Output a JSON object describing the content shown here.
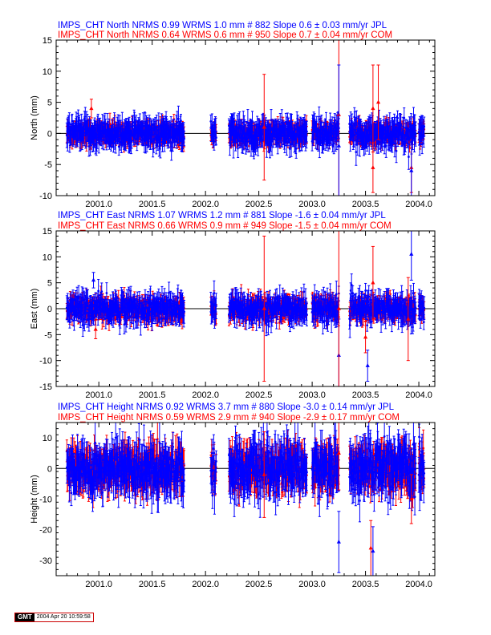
{
  "colors": {
    "jpl": "#0000ff",
    "com": "#ff0000",
    "axis": "#000000"
  },
  "footer": {
    "logo": "GMT",
    "timestamp": "2004 Apr 20 10:59:58"
  },
  "chart_data": [
    {
      "type": "scatter",
      "title_jpl": "IMPS_CHT North NRMS 0.99 WRMS  1.0 mm # 882 Slope    0.6 ±  0.03 mm/yr JPL",
      "title_com": "IMPS_CHT North NRMS 0.64 WRMS  0.6 mm # 950 Slope    0.7 ±  0.04 mm/yr COM",
      "ylabel": "North (mm)",
      "xlim": [
        2000.6,
        2004.15
      ],
      "ylim": [
        -10,
        15
      ],
      "xticks": [
        "2001.0",
        "2001.5",
        "2002.0",
        "2002.5",
        "2003.0",
        "2003.5",
        "2004.0"
      ],
      "yticks": [
        "-10",
        "-5",
        "0",
        "5",
        "10",
        "15"
      ],
      "series": [
        {
          "name": "JPL",
          "color": "#0000ff",
          "scatter": 1.0,
          "err": 1.6
        },
        {
          "name": "COM",
          "color": "#ff0000",
          "scatter": 0.6,
          "err": 1.2
        }
      ],
      "outliers": [
        {
          "series": "COM",
          "x": 2000.93,
          "y": 4.0,
          "err": 1.5
        },
        {
          "series": "COM",
          "x": 2002.55,
          "y": 1.0,
          "err": 8.5
        },
        {
          "series": "COM",
          "x": 2003.25,
          "y": 3.0,
          "err": 13.0
        },
        {
          "series": "JPL",
          "x": 2003.25,
          "y": -2.0,
          "err": 13.0
        },
        {
          "series": "COM",
          "x": 2003.57,
          "y": 4.0,
          "err": 7.0
        },
        {
          "series": "COM",
          "x": 2003.57,
          "y": -5.5,
          "err": 4.0
        },
        {
          "series": "COM",
          "x": 2003.93,
          "y": -5.5,
          "err": 4.0
        },
        {
          "series": "JPL",
          "x": 2003.93,
          "y": -6.0,
          "err": 4.5
        },
        {
          "series": "COM",
          "x": 2003.62,
          "y": 5.0,
          "err": 6.0
        }
      ]
    },
    {
      "type": "scatter",
      "title_jpl": "IMPS_CHT East NRMS 1.07 WRMS  1.2 mm # 881 Slope   -1.6 ±  0.04 mm/yr JPL",
      "title_com": "IMPS_CHT East NRMS 0.66 WRMS  0.9 mm # 949 Slope   -1.5 ±  0.04 mm/yr COM",
      "ylabel": "East (mm)",
      "xlim": [
        2000.6,
        2004.15
      ],
      "ylim": [
        -15,
        15
      ],
      "xticks": [
        "2001.0",
        "2001.5",
        "2002.0",
        "2002.5",
        "2003.0",
        "2003.5",
        "2004.0"
      ],
      "yticks": [
        "-15",
        "-10",
        "-5",
        "0",
        "5",
        "10",
        "15"
      ],
      "series": [
        {
          "name": "JPL",
          "color": "#0000ff",
          "scatter": 1.2,
          "err": 1.8
        },
        {
          "name": "COM",
          "color": "#ff0000",
          "scatter": 0.9,
          "err": 1.4
        }
      ],
      "outliers": [
        {
          "series": "JPL",
          "x": 2000.95,
          "y": 5.5,
          "err": 1.5
        },
        {
          "series": "COM",
          "x": 2000.97,
          "y": -4.0,
          "err": 1.8
        },
        {
          "series": "COM",
          "x": 2002.55,
          "y": 0.0,
          "err": 14.0
        },
        {
          "series": "JPL",
          "x": 2003.25,
          "y": -9.0,
          "err": 7.0
        },
        {
          "series": "COM",
          "x": 2003.25,
          "y": 0.0,
          "err": 15.0
        },
        {
          "series": "COM",
          "x": 2003.5,
          "y": -5.5,
          "err": 3.0
        },
        {
          "series": "JPL",
          "x": 2003.52,
          "y": -11.0,
          "err": 3.0
        },
        {
          "series": "COM",
          "x": 2003.57,
          "y": 5.0,
          "err": 7.0
        },
        {
          "series": "JPL",
          "x": 2003.93,
          "y": 10.5,
          "err": 5.0
        },
        {
          "series": "COM",
          "x": 2003.9,
          "y": -2.0,
          "err": 8.0
        }
      ]
    },
    {
      "type": "scatter",
      "title_jpl": "IMPS_CHT Height NRMS 0.92 WRMS  3.7 mm # 880 Slope   -3.0 ±  0.14 mm/yr JPL",
      "title_com": "IMPS_CHT Height NRMS 0.59 WRMS  2.9 mm # 940 Slope   -2.9 ±  0.17 mm/yr COM",
      "ylabel": "Height (mm)",
      "xlim": [
        2000.6,
        2004.15
      ],
      "ylim": [
        -35,
        15
      ],
      "xticks": [
        "2001.0",
        "2001.5",
        "2002.0",
        "2002.5",
        "2003.0",
        "2003.5",
        "2004.0"
      ],
      "yticks": [
        "-30",
        "-20",
        "-10",
        "0",
        "10"
      ],
      "series": [
        {
          "name": "JPL",
          "color": "#0000ff",
          "scatter": 3.7,
          "err": 5.5
        },
        {
          "name": "COM",
          "color": "#ff0000",
          "scatter": 2.9,
          "err": 4.5
        }
      ],
      "outliers": [
        {
          "series": "COM",
          "x": 2002.55,
          "y": -2.0,
          "err": 14.0
        },
        {
          "series": "JPL",
          "x": 2003.25,
          "y": -24.0,
          "err": 10.0
        },
        {
          "series": "COM",
          "x": 2003.25,
          "y": 5.0,
          "err": 12.0
        },
        {
          "series": "COM",
          "x": 2003.55,
          "y": -26.0,
          "err": 9.0
        },
        {
          "series": "JPL",
          "x": 2003.57,
          "y": -27.0,
          "err": 8.0
        },
        {
          "series": "JPL",
          "x": 2003.95,
          "y": 8.0,
          "err": 10.0
        },
        {
          "series": "COM",
          "x": 2003.93,
          "y": -10.0,
          "err": 8.0
        }
      ],
      "data_segments_note": ""
    }
  ]
}
